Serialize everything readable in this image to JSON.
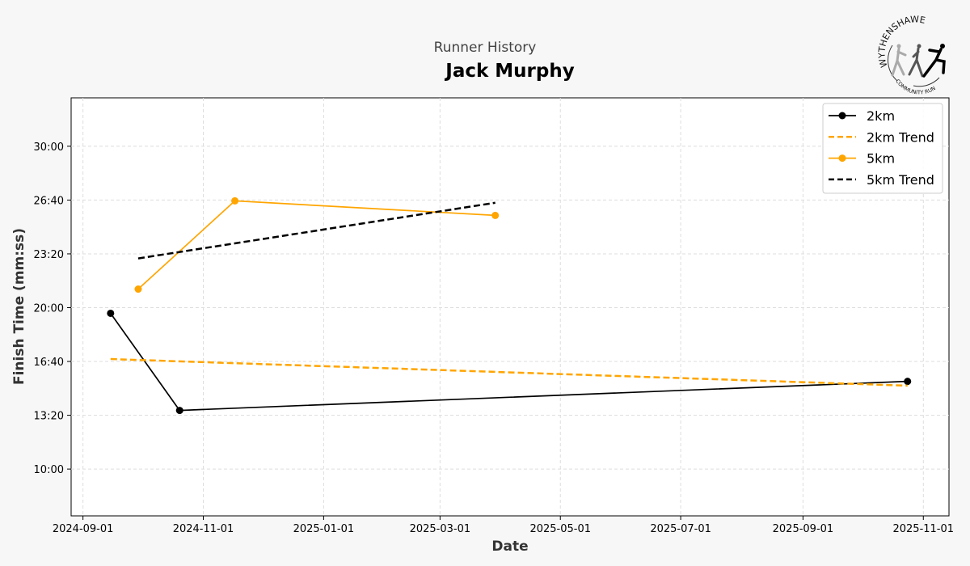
{
  "chart_data": {
    "type": "line",
    "subtitle": "Runner History",
    "title": "Jack Murphy",
    "xlabel": "Date",
    "ylabel": "Finish Time (mm:ss)",
    "xlim": [
      "2024-08-26",
      "2025-11-14"
    ],
    "ylim_seconds": [
      426,
      1980
    ],
    "x_ticks": [
      "2024-09-01",
      "2024-11-01",
      "2025-01-01",
      "2025-03-01",
      "2025-05-01",
      "2025-07-01",
      "2025-09-01",
      "2025-11-01"
    ],
    "y_ticks": [
      {
        "seconds": 600,
        "label": "10:00"
      },
      {
        "seconds": 800,
        "label": "13:20"
      },
      {
        "seconds": 1000,
        "label": "16:40"
      },
      {
        "seconds": 1200,
        "label": "20:00"
      },
      {
        "seconds": 1400,
        "label": "23:20"
      },
      {
        "seconds": 1600,
        "label": "26:40"
      },
      {
        "seconds": 1800,
        "label": "30:00"
      }
    ],
    "grid": true,
    "legend_position": "top-right",
    "series": [
      {
        "name": "2km",
        "kind": "line-marker",
        "color": "#000000",
        "dash": false,
        "points": [
          {
            "date": "2024-09-15",
            "seconds": 1179
          },
          {
            "date": "2024-10-20",
            "seconds": 818
          },
          {
            "date": "2025-10-24",
            "seconds": 926
          }
        ]
      },
      {
        "name": "2km Trend",
        "kind": "dashed",
        "color": "#ffa500",
        "dash": true,
        "points": [
          {
            "date": "2024-09-15",
            "seconds": 1009
          },
          {
            "date": "2025-10-24",
            "seconds": 910
          }
        ]
      },
      {
        "name": "5km",
        "kind": "line-marker",
        "color": "#ffa500",
        "dash": false,
        "points": [
          {
            "date": "2024-09-29",
            "seconds": 1269
          },
          {
            "date": "2024-11-17",
            "seconds": 1597
          },
          {
            "date": "2025-03-29",
            "seconds": 1543
          }
        ]
      },
      {
        "name": "5km Trend",
        "kind": "dashed",
        "color": "#000000",
        "dash": true,
        "points": [
          {
            "date": "2024-09-29",
            "seconds": 1383
          },
          {
            "date": "2025-03-29",
            "seconds": 1590
          }
        ]
      }
    ]
  },
  "logo": {
    "text_top": "WYTHENSHAWE",
    "text_bottom": "COMMUNITY RUN"
  }
}
